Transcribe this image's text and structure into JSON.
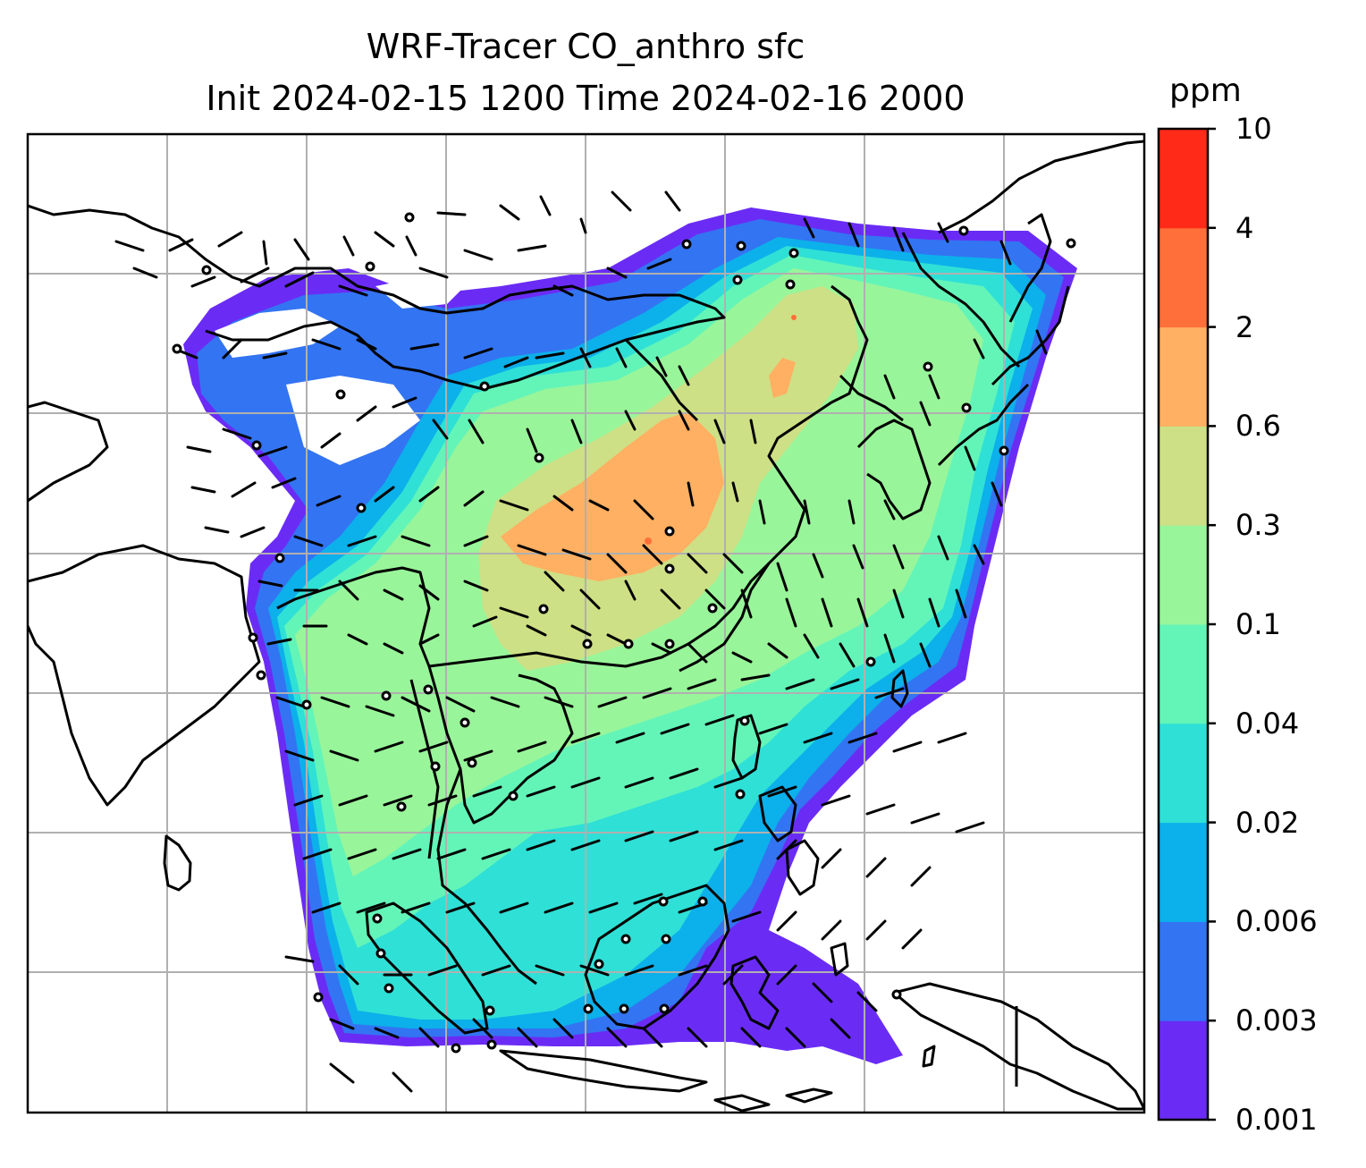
{
  "title_line1": "WRF-Tracer CO_anthro sfc",
  "title_line2": "Init 2024-02-15 1200 Time 2024-02-16 2000",
  "colorbar": {
    "unit": "ppm",
    "levels": [
      "0.001",
      "0.003",
      "0.006",
      "0.02",
      "0.04",
      "0.1",
      "0.3",
      "0.6",
      "2",
      "4",
      "10"
    ],
    "colors": [
      "#6a2cf5",
      "#3374f2",
      "#0cb0ea",
      "#2fe0d6",
      "#63f5b8",
      "#99f59a",
      "#cde085",
      "#ffb062",
      "#ff6f3a",
      "#ff2a18"
    ]
  },
  "map": {
    "gridlines": true,
    "coastline_color": "#000000",
    "gridline_color": "#b0b0b0"
  }
}
